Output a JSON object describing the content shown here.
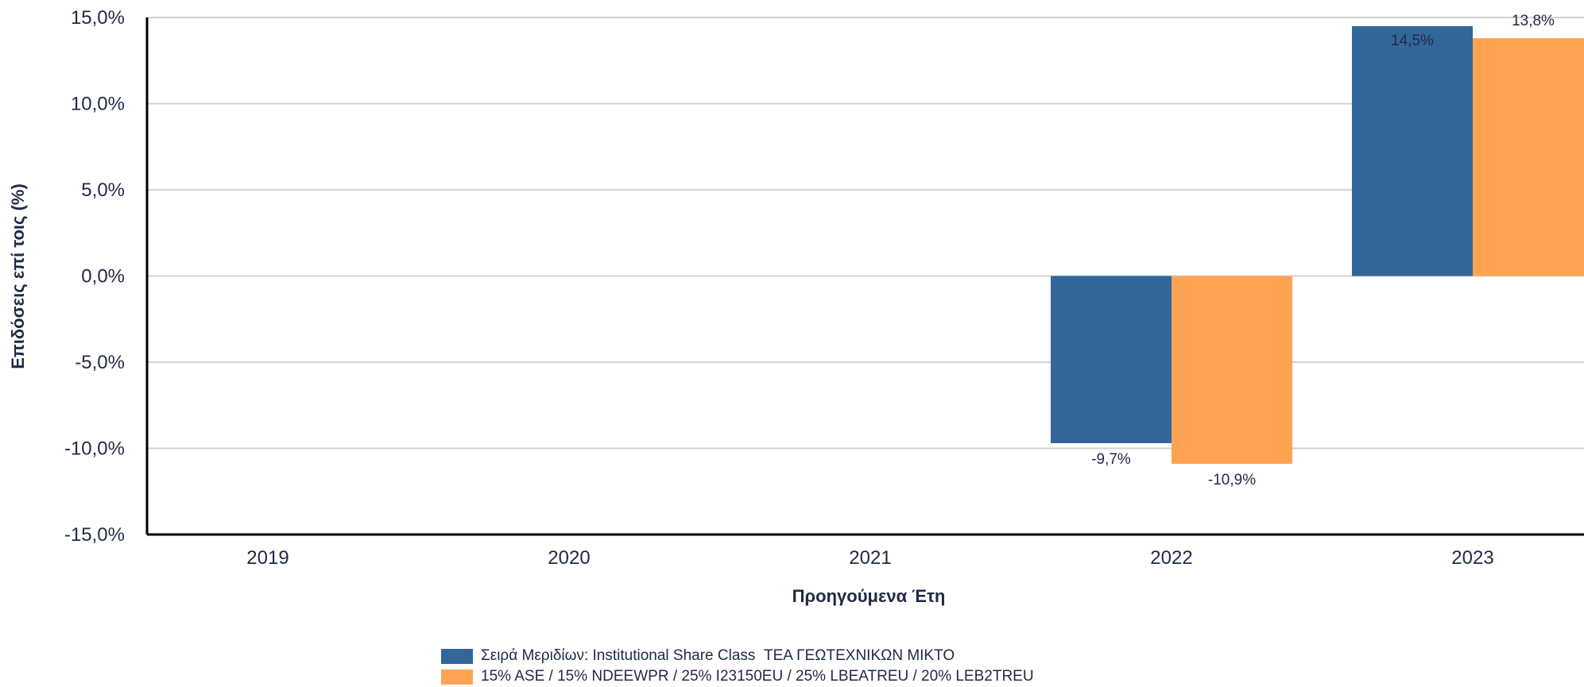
{
  "colors": {
    "series_1": "#336699",
    "series_2": "#FFA352",
    "grid": "#d3d3d3",
    "axis": "#000000",
    "text": "#1f2a44"
  },
  "chart_data": {
    "type": "bar",
    "title": "",
    "xlabel": "Προηγούμενα Έτη",
    "ylabel": "Επιδόσεις επί τοις (%)",
    "categories": [
      "2019",
      "2020",
      "2021",
      "2022",
      "2023"
    ],
    "ylim": [
      -15,
      15
    ],
    "yticks": [
      15,
      10,
      5,
      0,
      -5,
      -10,
      -15
    ],
    "ytick_labels": [
      "15,0%",
      "10,0%",
      "5,0%",
      "0,0%",
      "-5,0%",
      "-10,0%",
      "-15,0%"
    ],
    "grid": true,
    "legend_position": "bottom",
    "series": [
      {
        "name": "Σειρά Μεριδίων: Institutional Share Class  ΤΕΑ ΓΕΩΤΕΧΝΙΚΩΝ ΜΙΚΤΟ",
        "values": [
          null,
          null,
          null,
          -9.7,
          14.5
        ],
        "labels": [
          "",
          "",
          "",
          "-9,7%",
          "14,5%"
        ]
      },
      {
        "name": "15% ASE / 15% NDEEWPR / 25% I23150EU / 25% LBEATREU / 20% LEB2TREU",
        "values": [
          null,
          null,
          null,
          -10.9,
          13.8
        ],
        "labels": [
          "",
          "",
          "",
          "-10,9%",
          "13,8%"
        ]
      }
    ]
  }
}
